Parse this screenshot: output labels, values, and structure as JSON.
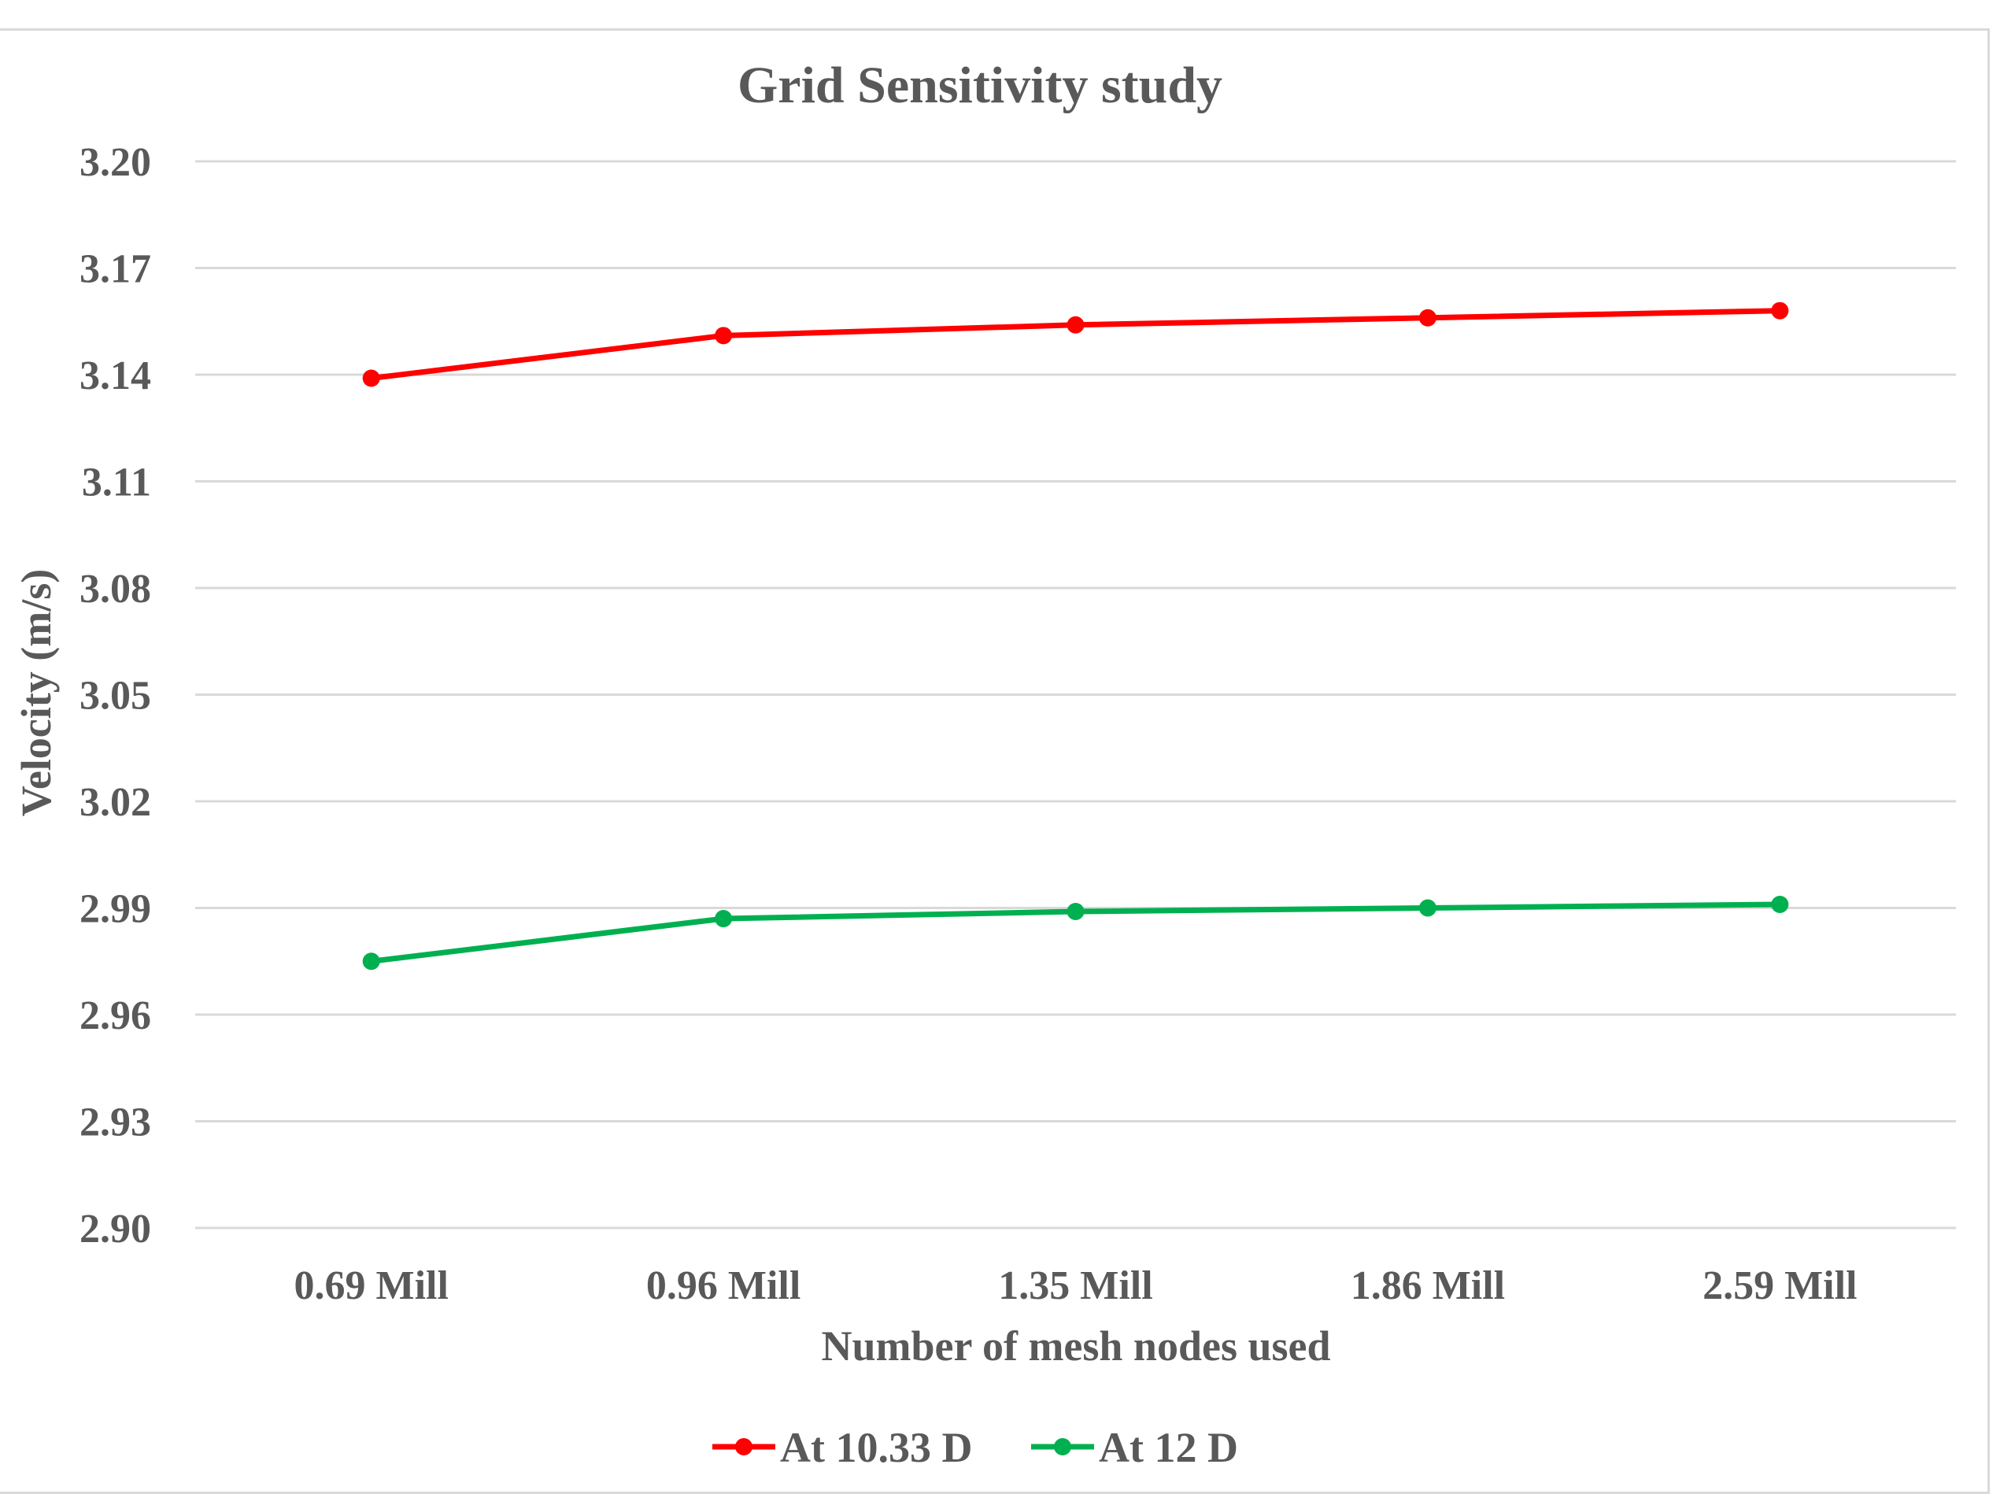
{
  "chart_data": {
    "type": "line",
    "title": "Grid Sensitivity study",
    "xlabel": "Number of mesh nodes used",
    "ylabel": "Velocity (m/s)",
    "categories": [
      "0.69 Mill",
      "0.96 Mill",
      "1.35 Mill",
      "1.86 Mill",
      "2.59 Mill"
    ],
    "yticks": [
      "2.90",
      "2.93",
      "2.96",
      "2.99",
      "3.02",
      "3.05",
      "3.08",
      "3.11",
      "3.14",
      "3.17",
      "3.20"
    ],
    "ylim": [
      2.9,
      3.2
    ],
    "grid": true,
    "legend_position": "bottom",
    "series": [
      {
        "name": "At 10.33 D",
        "color": "#ff0000",
        "values": [
          3.139,
          3.151,
          3.154,
          3.156,
          3.158
        ]
      },
      {
        "name": "At 12 D",
        "color": "#00b050",
        "values": [
          2.975,
          2.987,
          2.989,
          2.99,
          2.991
        ]
      }
    ]
  }
}
